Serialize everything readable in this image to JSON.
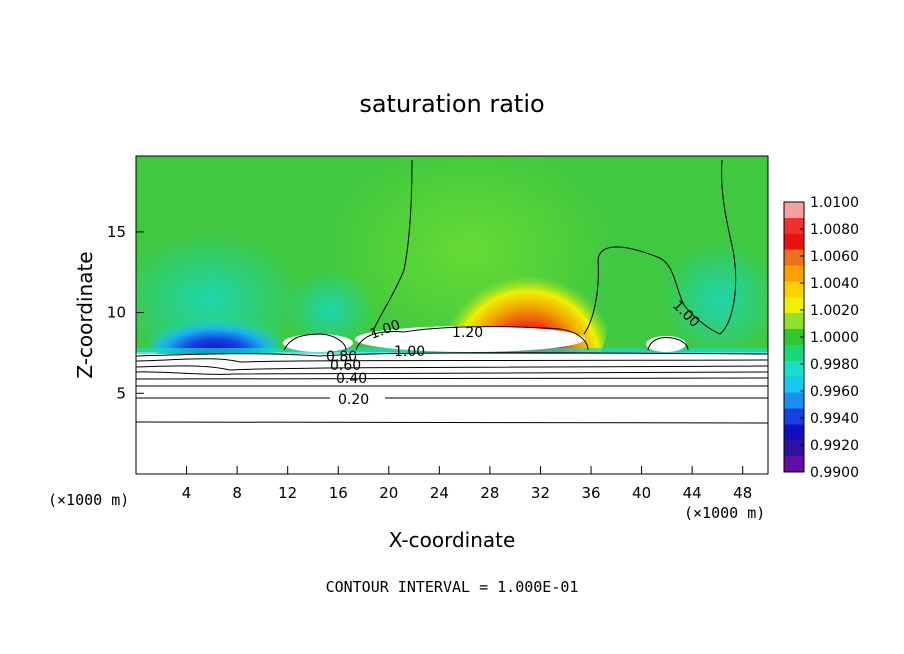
{
  "chart_data": {
    "type": "heatmap",
    "title": "saturation ratio",
    "xlabel": "X-coordinate",
    "ylabel": "Z-coordinate",
    "x_unit": "(×1000 m)",
    "y_unit": "(×1000 m)",
    "xlim": [
      0,
      50
    ],
    "ylim": [
      0,
      19.7
    ],
    "xticks": [
      4,
      8,
      12,
      16,
      20,
      24,
      28,
      32,
      36,
      40,
      44,
      48
    ],
    "yticks": [
      5,
      10,
      15
    ],
    "colorbar": {
      "min": 0.99,
      "max": 1.01,
      "labels": [
        "1.0100",
        "1.0080",
        "1.0060",
        "1.0040",
        "1.0020",
        "1.0000",
        "0.9980",
        "0.9960",
        "0.9940",
        "0.9920",
        "0.9900"
      ],
      "colors": [
        "#f7a0a0",
        "#f03030",
        "#e81010",
        "#f07020",
        "#ffa000",
        "#ffd000",
        "#f0f000",
        "#90e030",
        "#30c830",
        "#18d878",
        "#18e0c8",
        "#18c8f0",
        "#1890f0",
        "#1840e0",
        "#1010c0",
        "#3010a0",
        "#6010a0"
      ]
    },
    "contour_interval": "CONTOUR INTERVAL = 1.000E-01",
    "contour_labels": [
      "0.20",
      "0.40",
      "0.60",
      "0.80",
      "1.00",
      "1.20",
      "1.00",
      "1.00"
    ]
  }
}
